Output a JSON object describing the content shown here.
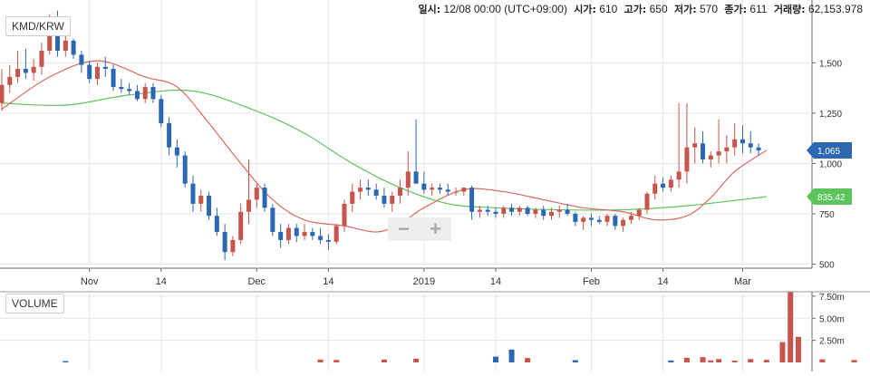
{
  "header": {
    "pair": "KMD/KRW",
    "date_label": "일시:",
    "date_value": "12/08 00:00 (UTC+09:00)",
    "open_label": "시가:",
    "open_value": "610",
    "high_label": "고가:",
    "high_value": "650",
    "low_label": "저가:",
    "low_value": "570",
    "close_label": "종가:",
    "close_value": "611",
    "volume_label": "거래량:",
    "volume_value": "62,153.978"
  },
  "volume_panel": {
    "label": "VOLUME"
  },
  "controls": {
    "zoom_out": "−",
    "zoom_in": "+"
  },
  "colors": {
    "up": "#c8554b",
    "down": "#2c67b1",
    "ma_short": "#d9695f",
    "ma_long": "#5cc45c",
    "grid": "#e6e6e6"
  },
  "chart_data": [
    {
      "type": "candlestick",
      "title": "KMD/KRW",
      "x_ticks": [
        "Nov",
        "14",
        "Dec",
        "14",
        "2019",
        "14",
        "Feb",
        "14",
        "Mar"
      ],
      "y_ticks": [
        "500",
        "750",
        "1,000",
        "1,250",
        "1,500"
      ],
      "ylim": [
        480,
        1740
      ],
      "grid": true,
      "price_tags": [
        {
          "value": 1065,
          "label": "1,065",
          "color": "#2c67b1"
        },
        {
          "value": 835.42,
          "label": "835.42",
          "color": "#5cc45c"
        }
      ],
      "ohlc": [
        [
          1300,
          1470,
          1260,
          1390
        ],
        [
          1390,
          1490,
          1350,
          1430
        ],
        [
          1430,
          1560,
          1400,
          1470
        ],
        [
          1470,
          1570,
          1420,
          1450
        ],
        [
          1450,
          1520,
          1410,
          1480
        ],
        [
          1480,
          1600,
          1440,
          1560
        ],
        [
          1560,
          1740,
          1540,
          1700
        ],
        [
          1700,
          1760,
          1530,
          1560
        ],
        [
          1560,
          1640,
          1530,
          1610
        ],
        [
          1610,
          1620,
          1520,
          1540
        ],
        [
          1540,
          1560,
          1450,
          1490
        ],
        [
          1490,
          1510,
          1400,
          1420
        ],
        [
          1420,
          1500,
          1390,
          1480
        ],
        [
          1480,
          1530,
          1430,
          1470
        ],
        [
          1470,
          1490,
          1360,
          1380
        ],
        [
          1380,
          1420,
          1350,
          1370
        ],
        [
          1370,
          1400,
          1340,
          1360
        ],
        [
          1360,
          1390,
          1310,
          1320
        ],
        [
          1320,
          1400,
          1300,
          1380
        ],
        [
          1380,
          1400,
          1300,
          1320
        ],
        [
          1320,
          1340,
          1180,
          1200
        ],
        [
          1200,
          1230,
          1040,
          1080
        ],
        [
          1080,
          1120,
          980,
          1040
        ],
        [
          1040,
          1060,
          880,
          900
        ],
        [
          900,
          940,
          760,
          800
        ],
        [
          800,
          870,
          760,
          840
        ],
        [
          840,
          860,
          720,
          740
        ],
        [
          740,
          780,
          640,
          660
        ],
        [
          660,
          700,
          520,
          560
        ],
        [
          560,
          640,
          540,
          620
        ],
        [
          620,
          800,
          600,
          760
        ],
        [
          760,
          1020,
          700,
          820
        ],
        [
          820,
          900,
          780,
          880
        ],
        [
          880,
          900,
          760,
          780
        ],
        [
          780,
          800,
          640,
          660
        ],
        [
          660,
          700,
          580,
          620
        ],
        [
          620,
          700,
          600,
          680
        ],
        [
          680,
          700,
          610,
          640
        ],
        [
          640,
          700,
          620,
          660
        ],
        [
          660,
          680,
          620,
          640
        ],
        [
          640,
          680,
          600,
          620
        ],
        [
          620,
          650,
          570,
          611
        ],
        [
          611,
          700,
          600,
          690
        ],
        [
          690,
          820,
          660,
          800
        ],
        [
          800,
          900,
          760,
          860
        ],
        [
          860,
          920,
          820,
          880
        ],
        [
          880,
          920,
          840,
          870
        ],
        [
          870,
          900,
          820,
          840
        ],
        [
          840,
          880,
          780,
          800
        ],
        [
          800,
          860,
          760,
          840
        ],
        [
          840,
          920,
          800,
          880
        ],
        [
          880,
          1060,
          840,
          960
        ],
        [
          960,
          1220,
          900,
          900
        ],
        [
          900,
          960,
          850,
          870
        ],
        [
          870,
          900,
          840,
          880
        ],
        [
          880,
          900,
          850,
          870
        ],
        [
          870,
          900,
          840,
          860
        ],
        [
          860,
          880,
          840,
          860
        ],
        [
          860,
          880,
          840,
          880
        ],
        [
          880,
          890,
          720,
          760
        ],
        [
          760,
          790,
          730,
          770
        ],
        [
          770,
          790,
          740,
          760
        ],
        [
          760,
          780,
          730,
          750
        ],
        [
          750,
          790,
          730,
          780
        ],
        [
          780,
          800,
          740,
          760
        ],
        [
          760,
          790,
          740,
          780
        ],
        [
          780,
          790,
          740,
          750
        ],
        [
          750,
          780,
          730,
          770
        ],
        [
          770,
          790,
          720,
          740
        ],
        [
          740,
          780,
          720,
          760
        ],
        [
          760,
          790,
          730,
          770
        ],
        [
          770,
          800,
          740,
          750
        ],
        [
          750,
          760,
          690,
          710
        ],
        [
          710,
          740,
          670,
          730
        ],
        [
          730,
          750,
          690,
          720
        ],
        [
          720,
          740,
          700,
          710
        ],
        [
          710,
          750,
          690,
          740
        ],
        [
          740,
          750,
          670,
          690
        ],
        [
          690,
          730,
          660,
          720
        ],
        [
          720,
          760,
          700,
          740
        ],
        [
          740,
          780,
          720,
          770
        ],
        [
          770,
          860,
          750,
          850
        ],
        [
          850,
          940,
          820,
          900
        ],
        [
          900,
          930,
          860,
          880
        ],
        [
          880,
          940,
          860,
          920
        ],
        [
          920,
          1300,
          880,
          960
        ],
        [
          960,
          1300,
          900,
          1080
        ],
        [
          1080,
          1180,
          1000,
          1100
        ],
        [
          1100,
          1160,
          1000,
          1020
        ],
        [
          1020,
          1060,
          980,
          1040
        ],
        [
          1040,
          1220,
          1000,
          1060
        ],
        [
          1060,
          1140,
          1000,
          1080
        ],
        [
          1080,
          1200,
          1040,
          1120
        ],
        [
          1120,
          1190,
          1050,
          1100
        ],
        [
          1100,
          1160,
          1050,
          1080
        ],
        [
          1080,
          1100,
          1040,
          1065
        ]
      ],
      "ma_short_anchors": [
        [
          0,
          1270
        ],
        [
          6,
          1430
        ],
        [
          12,
          1510
        ],
        [
          18,
          1430
        ],
        [
          22,
          1380
        ],
        [
          26,
          1200
        ],
        [
          30,
          1000
        ],
        [
          34,
          820
        ],
        [
          38,
          720
        ],
        [
          43,
          690
        ],
        [
          47,
          660
        ],
        [
          50,
          700
        ],
        [
          53,
          780
        ],
        [
          58,
          870
        ],
        [
          63,
          860
        ],
        [
          68,
          820
        ],
        [
          73,
          780
        ],
        [
          78,
          760
        ],
        [
          82,
          720
        ],
        [
          86,
          740
        ],
        [
          89,
          830
        ],
        [
          92,
          960
        ],
        [
          96,
          1065
        ]
      ],
      "ma_long_anchors": [
        [
          0,
          1300
        ],
        [
          8,
          1290
        ],
        [
          16,
          1340
        ],
        [
          24,
          1360
        ],
        [
          32,
          1260
        ],
        [
          38,
          1150
        ],
        [
          44,
          1000
        ],
        [
          50,
          880
        ],
        [
          56,
          800
        ],
        [
          62,
          780
        ],
        [
          70,
          770
        ],
        [
          78,
          770
        ],
        [
          86,
          790
        ],
        [
          96,
          835
        ]
      ],
      "volume": {
        "yticks": [
          "2.50m",
          "5.00m",
          "7.50m"
        ],
        "ylim": [
          0,
          8000000
        ],
        "bars": [
          [
            8,
            150000,
            "down"
          ],
          [
            40,
            320000,
            "up"
          ],
          [
            42,
            280000,
            "up"
          ],
          [
            48,
            320000,
            "up"
          ],
          [
            52,
            420000,
            "up"
          ],
          [
            62,
            650000,
            "down"
          ],
          [
            64,
            1450000,
            "down"
          ],
          [
            66,
            500000,
            "up"
          ],
          [
            72,
            250000,
            "down"
          ],
          [
            84,
            220000,
            "down"
          ],
          [
            86,
            520000,
            "up"
          ],
          [
            88,
            600000,
            "up"
          ],
          [
            89,
            230000,
            "up"
          ],
          [
            90,
            380000,
            "up"
          ],
          [
            92,
            200000,
            "up"
          ],
          [
            94,
            380000,
            "up"
          ],
          [
            96,
            290000,
            "up"
          ],
          [
            98,
            2300000,
            "up"
          ],
          [
            99,
            7950000,
            "up"
          ],
          [
            100,
            2900000,
            "up"
          ],
          [
            103,
            350000,
            "up"
          ],
          [
            107,
            270000,
            "up"
          ]
        ]
      }
    }
  ]
}
